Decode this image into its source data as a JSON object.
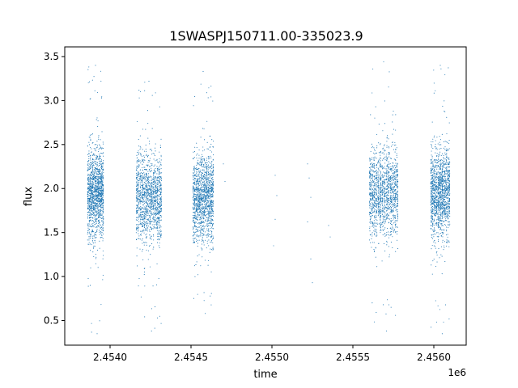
{
  "chart_data": {
    "type": "scatter",
    "title": "1SWASPJ150711.00-335023.9",
    "xlabel": "time",
    "ylabel": "flux",
    "x_offset_label": "1e6",
    "x_scale_factor": 1000000,
    "xlim": [
      2.45372,
      2.4562
    ],
    "ylim": [
      0.22,
      3.61
    ],
    "x_ticks": [
      2.454,
      2.4545,
      2.455,
      2.4555,
      2.456
    ],
    "x_tick_labels": [
      "2.4540",
      "2.4545",
      "2.4550",
      "2.4555",
      "2.4560"
    ],
    "y_ticks": [
      0.5,
      1.0,
      1.5,
      2.0,
      2.5,
      3.0,
      3.5
    ],
    "y_tick_labels": [
      "0.5",
      "1.0",
      "1.5",
      "2.0",
      "2.5",
      "3.0",
      "3.5"
    ],
    "grid": false,
    "marker_color": "#1f77b4",
    "clusters": [
      {
        "x_range": [
          2.45386,
          2.45396
        ],
        "y_center": 1.95,
        "y_spread": 0.25,
        "y_range": [
          0.35,
          3.4
        ]
      },
      {
        "x_range": [
          2.45416,
          2.45432
        ],
        "y_center": 1.9,
        "y_spread": 0.25,
        "y_range": [
          0.38,
          3.22
        ]
      },
      {
        "x_range": [
          2.45451,
          2.45464
        ],
        "y_center": 1.9,
        "y_spread": 0.25,
        "y_range": [
          0.58,
          3.33
        ]
      },
      {
        "x_range": [
          2.4556,
          2.45578
        ],
        "y_center": 1.95,
        "y_spread": 0.25,
        "y_range": [
          0.38,
          3.44
        ]
      },
      {
        "x_range": [
          2.45598,
          2.4561
        ],
        "y_center": 1.95,
        "y_spread": 0.25,
        "y_range": [
          0.35,
          3.4
        ]
      }
    ],
    "isolated_points": [
      {
        "x": 2.4547,
        "y": 2.28
      },
      {
        "x": 2.45471,
        "y": 2.08
      },
      {
        "x": 2.45502,
        "y": 2.15
      },
      {
        "x": 2.45503,
        "y": 1.92
      },
      {
        "x": 2.45502,
        "y": 1.65
      },
      {
        "x": 2.45501,
        "y": 1.35
      },
      {
        "x": 2.45522,
        "y": 2.28
      },
      {
        "x": 2.45523,
        "y": 2.12
      },
      {
        "x": 2.45524,
        "y": 1.9
      },
      {
        "x": 2.45522,
        "y": 1.62
      },
      {
        "x": 2.45524,
        "y": 1.2
      },
      {
        "x": 2.45525,
        "y": 0.93
      },
      {
        "x": 2.45535,
        "y": 1.58
      },
      {
        "x": 2.45536,
        "y": 1.45
      }
    ]
  }
}
